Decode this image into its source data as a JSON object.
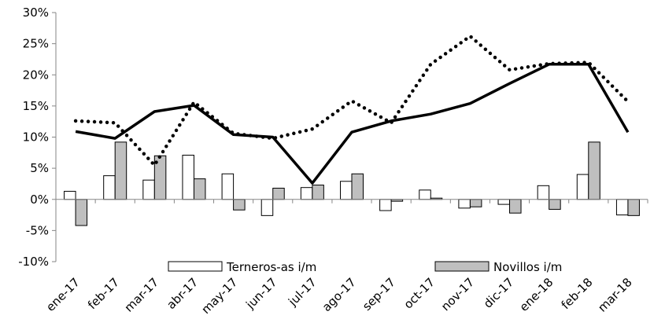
{
  "chart_data": {
    "type": "bar",
    "title": "",
    "xlabel": "",
    "ylabel": "",
    "categories": [
      "ene-17",
      "feb-17",
      "mar-17",
      "abr-17",
      "may-17",
      "jun-17",
      "jul-17",
      "ago-17",
      "sep-17",
      "oct-17",
      "nov-17",
      "dic-17",
      "ene-18",
      "feb-18",
      "mar-18"
    ],
    "ylim": [
      -10,
      30
    ],
    "yticks": [
      -10,
      -5,
      0,
      5,
      10,
      15,
      20,
      25,
      30
    ],
    "ytick_labels": [
      "-10%",
      "-5%",
      "0%",
      "5%",
      "10%",
      "15%",
      "20%",
      "25%",
      "30%"
    ],
    "grid": false,
    "legend_position": "bottom-inside",
    "series": [
      {
        "name": "Terneros-as i/m",
        "kind": "bar",
        "color": "#ffffff",
        "stroke": "#000000",
        "values": [
          1.3,
          3.8,
          3.1,
          7.1,
          4.1,
          -2.6,
          1.9,
          2.9,
          -1.8,
          1.5,
          -1.4,
          -0.8,
          2.2,
          4.0,
          -2.5
        ]
      },
      {
        "name": "Novillos i/m",
        "kind": "bar",
        "color": "#bfbfbf",
        "stroke": "#000000",
        "values": [
          -4.2,
          9.2,
          7.0,
          3.3,
          -1.7,
          1.8,
          2.3,
          4.1,
          -0.3,
          0.2,
          -1.2,
          -2.2,
          -1.6,
          9.2,
          -2.6
        ]
      },
      {
        "name": "",
        "kind": "line",
        "style": "solid",
        "color": "#000000",
        "values": [
          10.9,
          9.8,
          14.1,
          15.1,
          10.4,
          10.0,
          2.6,
          10.8,
          12.6,
          13.7,
          15.4,
          18.6,
          21.7,
          21.7,
          10.8
        ]
      },
      {
        "name": "",
        "kind": "line",
        "style": "dotted",
        "color": "#000000",
        "values": [
          12.6,
          12.3,
          5.5,
          15.6,
          10.6,
          9.8,
          11.3,
          15.8,
          12.3,
          21.7,
          26.2,
          20.8,
          21.8,
          22.0,
          15.7
        ]
      }
    ]
  }
}
